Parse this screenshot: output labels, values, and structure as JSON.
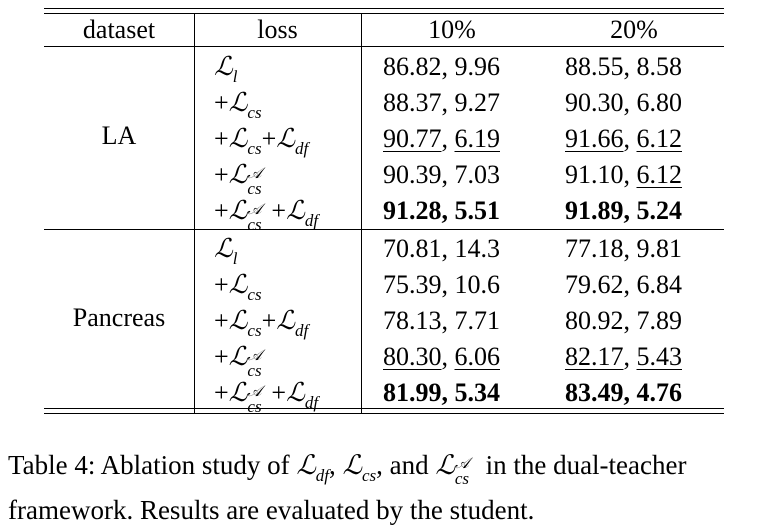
{
  "table": {
    "headers": [
      "dataset",
      "loss",
      "10%",
      "20%"
    ],
    "groups": [
      {
        "dataset": "LA",
        "rows": [
          {
            "loss": "l",
            "c10": [
              "86.82",
              "9.96"
            ],
            "c20": [
              "88.55",
              "8.58"
            ]
          },
          {
            "loss": "+cs",
            "c10": [
              "88.37",
              "9.27"
            ],
            "c20": [
              "90.30",
              "6.80"
            ]
          },
          {
            "loss": "+cs+df",
            "c10": [
              "90.77",
              "6.19"
            ],
            "c20": [
              "91.66",
              "6.12"
            ]
          },
          {
            "loss": "+csA",
            "c10": [
              "90.39",
              "7.03"
            ],
            "c20": [
              "91.10",
              "6.12"
            ]
          },
          {
            "loss": "+csA+df",
            "c10": [
              "91.28",
              "5.51"
            ],
            "c20": [
              "91.89",
              "5.24"
            ]
          }
        ]
      },
      {
        "dataset": "Pancreas",
        "rows": [
          {
            "loss": "l",
            "c10": [
              "70.81",
              "14.3"
            ],
            "c20": [
              "77.18",
              "9.81"
            ]
          },
          {
            "loss": "+cs",
            "c10": [
              "75.39",
              "10.6"
            ],
            "c20": [
              "79.62",
              "6.84"
            ]
          },
          {
            "loss": "+cs+df",
            "c10": [
              "78.13",
              "7.71"
            ],
            "c20": [
              "80.92",
              "7.89"
            ]
          },
          {
            "loss": "+csA",
            "c10": [
              "80.30",
              "6.06"
            ],
            "c20": [
              "82.17",
              "5.43"
            ]
          },
          {
            "loss": "+csA+df",
            "c10": [
              "81.99",
              "5.34"
            ],
            "c20": [
              "83.49",
              "4.76"
            ]
          }
        ]
      }
    ]
  },
  "caption": {
    "part1": "Table 4: Ablation study of ",
    "sym_df": "df",
    "sep1": ", ",
    "sym_cs": "cs",
    "sep2": ", and ",
    "sym_csA": "cs",
    "part2": " in the dual-teacher framework. Results are evaluated by the student."
  }
}
